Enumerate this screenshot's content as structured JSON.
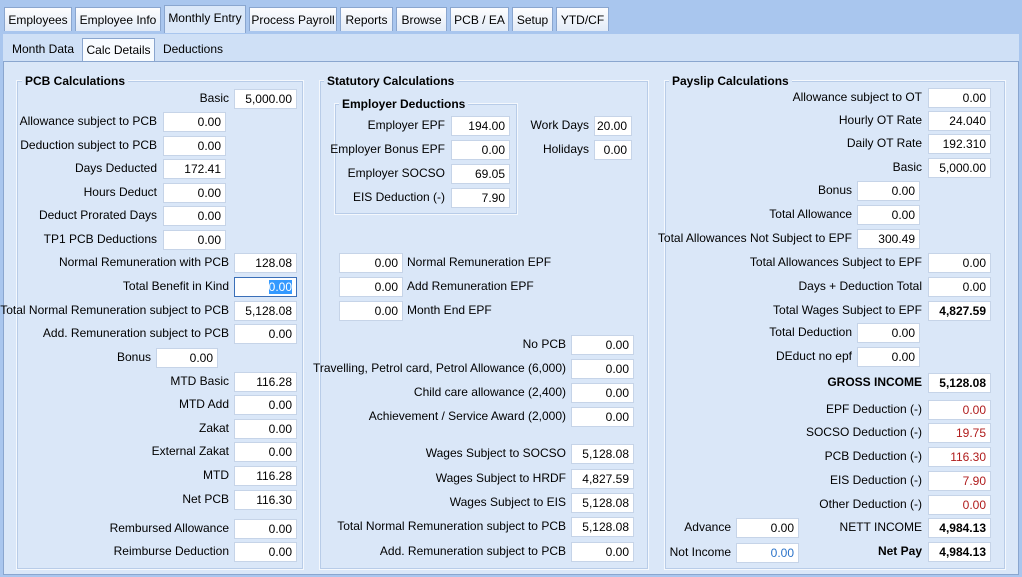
{
  "tabs": [
    "Employees",
    "Employee Info",
    "Monthly Entry",
    "Process Payroll",
    "Reports",
    "Browse",
    "PCB / EA",
    "Setup",
    "YTD/CF"
  ],
  "subtabs": [
    "Month Data",
    "Calc Details",
    "Deductions"
  ],
  "pcb": {
    "title": "PCB Calculations",
    "rows": [
      {
        "label": "Basic",
        "value": "5,000.00"
      },
      {
        "label": "Allowance subject to PCB",
        "value": "0.00"
      },
      {
        "label": "Deduction subject to PCB",
        "value": "0.00"
      },
      {
        "label": "Days Deducted",
        "value": "172.41"
      },
      {
        "label": "Hours Deduct",
        "value": "0.00"
      },
      {
        "label": "Deduct Prorated Days",
        "value": "0.00"
      },
      {
        "label": "TP1 PCB Deductions",
        "value": "0.00"
      },
      {
        "label": "Normal Remuneration with PCB",
        "value": "128.08"
      },
      {
        "label": "Total Benefit in Kind",
        "value": "0.00"
      },
      {
        "label": "Total Normal Remuneration subject to PCB",
        "value": "5,128.08"
      },
      {
        "label": "Add. Remuneration subject to PCB",
        "value": "0.00"
      },
      {
        "label": "Bonus",
        "value": "0.00"
      },
      {
        "label": "MTD Basic",
        "value": "116.28"
      },
      {
        "label": "MTD Add",
        "value": "0.00"
      },
      {
        "label": "Zakat",
        "value": "0.00"
      },
      {
        "label": "External Zakat",
        "value": "0.00"
      },
      {
        "label": "MTD",
        "value": "116.28"
      },
      {
        "label": "Net PCB",
        "value": "116.30"
      },
      {
        "label": "Rembursed Allowance",
        "value": "0.00"
      },
      {
        "label": "Reimburse Deduction",
        "value": "0.00"
      }
    ]
  },
  "statutory": {
    "title": "Statutory Calculations",
    "employer": {
      "title": "Employer Deductions",
      "rows": [
        {
          "label": "Employer EPF",
          "value": "194.00"
        },
        {
          "label": "Employer Bonus EPF",
          "value": "0.00"
        },
        {
          "label": "Employer SOCSO",
          "value": "69.05"
        },
        {
          "label": "EIS Deduction (-)",
          "value": "7.90"
        }
      ]
    },
    "days": [
      {
        "label": "Work Days",
        "value": "20.00"
      },
      {
        "label": "Holidays",
        "value": "0.00"
      }
    ],
    "epf": [
      {
        "label": "Normal Remuneration EPF",
        "value": "0.00"
      },
      {
        "label": "Add Remuneration EPF",
        "value": "0.00"
      },
      {
        "label": "Month End EPF",
        "value": "0.00"
      }
    ],
    "rows": [
      {
        "label": "No PCB",
        "value": "0.00"
      },
      {
        "label": "Travelling, Petrol card, Petrol Allowance (6,000)",
        "value": "0.00"
      },
      {
        "label": "Child care allowance (2,400)",
        "value": "0.00"
      },
      {
        "label": "Achievement / Service Award (2,000)",
        "value": "0.00"
      },
      {
        "label": "Wages Subject to SOCSO",
        "value": "5,128.08"
      },
      {
        "label": "Wages Subject to HRDF",
        "value": "4,827.59"
      },
      {
        "label": "Wages Subject to EIS",
        "value": "5,128.08"
      },
      {
        "label": "Total Normal Remuneration subject to PCB",
        "value": "5,128.08"
      },
      {
        "label": "Add. Remuneration subject to PCB",
        "value": "0.00"
      }
    ]
  },
  "payslip": {
    "title": "Payslip Calculations",
    "rows": [
      {
        "label": "Allowance subject to OT",
        "value": "0.00"
      },
      {
        "label": "Hourly OT Rate",
        "value": "24.040"
      },
      {
        "label": "Daily OT Rate",
        "value": "192.310"
      },
      {
        "label": "Basic",
        "value": "5,000.00"
      },
      {
        "label": "Bonus",
        "value": "0.00"
      },
      {
        "label": "Total Allowance",
        "value": "0.00"
      },
      {
        "label": "Total Allowances Not Subject to EPF",
        "value": "300.49"
      },
      {
        "label": "Total Allowances Subject to EPF",
        "value": "0.00"
      },
      {
        "label": "Days + Deduction Total",
        "value": "0.00"
      },
      {
        "label": "Total Wages Subject to EPF",
        "value": "4,827.59"
      },
      {
        "label": "Total Deduction",
        "value": "0.00"
      },
      {
        "label": "DEduct no epf",
        "value": "0.00"
      },
      {
        "label": "GROSS INCOME",
        "value": "5,128.08"
      },
      {
        "label": "EPF Deduction (-)",
        "value": "0.00"
      },
      {
        "label": "SOCSO Deduction (-)",
        "value": "19.75"
      },
      {
        "label": "PCB Deduction (-)",
        "value": "116.30"
      },
      {
        "label": "EIS Deduction (-)",
        "value": "7.90"
      },
      {
        "label": "Other Deduction (-)",
        "value": "0.00"
      },
      {
        "label": "NETT INCOME",
        "value": "4,984.13"
      },
      {
        "label": "Net Pay",
        "value": "4,984.13"
      }
    ],
    "extra": [
      {
        "label": "Advance",
        "value": "0.00"
      },
      {
        "label": "Not Income",
        "value": "0.00"
      }
    ]
  }
}
